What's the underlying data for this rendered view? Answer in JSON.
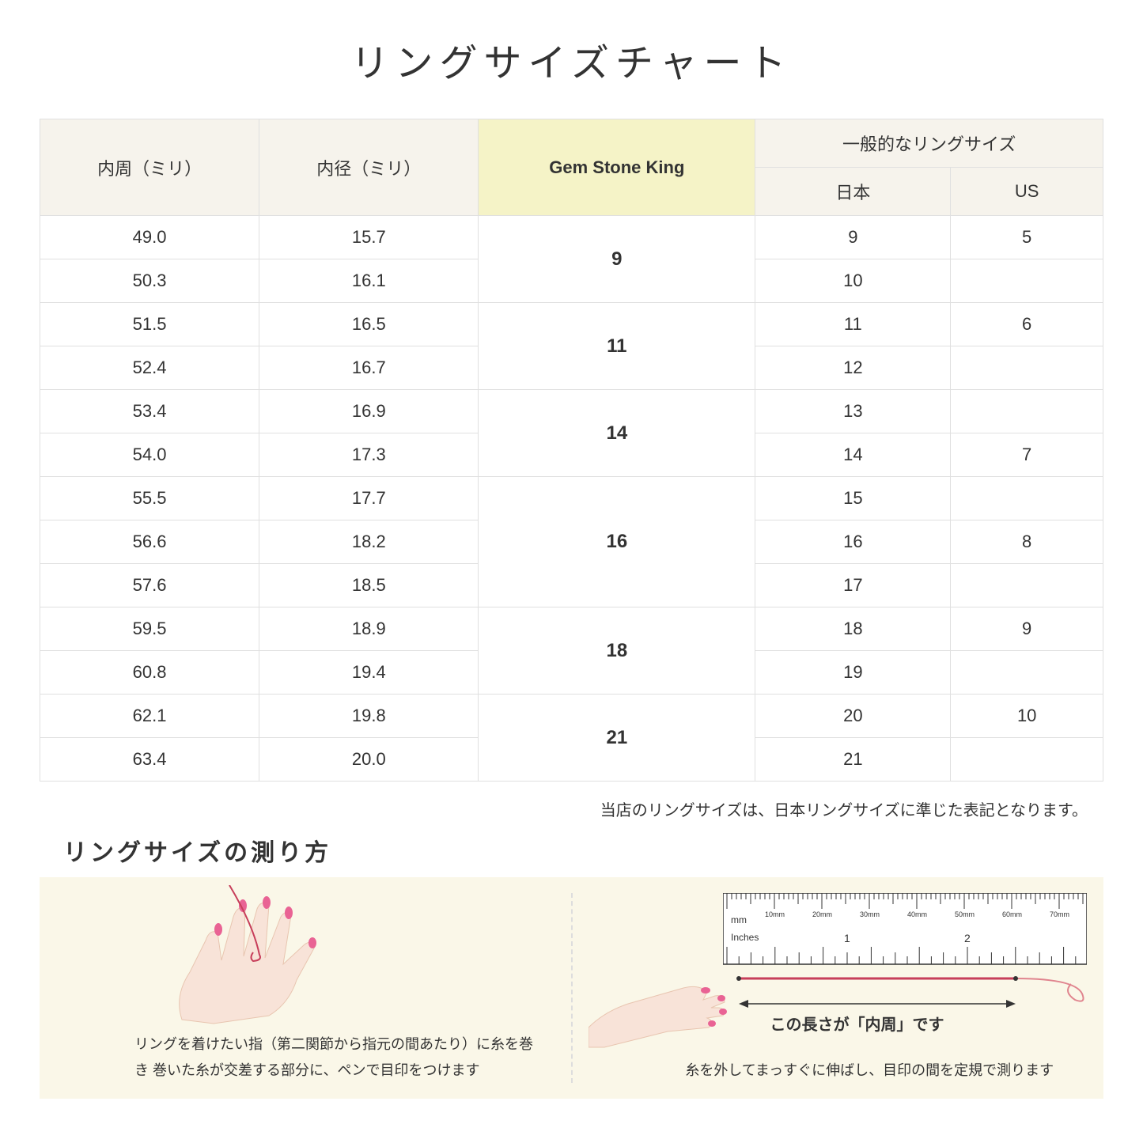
{
  "title": "リングサイズチャート",
  "headers": {
    "circumference": "内周（ミリ）",
    "diameter": "内径（ミリ）",
    "gsk": "Gem Stone King",
    "general": "一般的なリングサイズ",
    "japan": "日本",
    "us": "US"
  },
  "groups": [
    {
      "gsk": "9",
      "rows": [
        {
          "c": "49.0",
          "d": "15.7",
          "jp": "9",
          "us": "5"
        },
        {
          "c": "50.3",
          "d": "16.1",
          "jp": "10",
          "us": ""
        }
      ]
    },
    {
      "gsk": "11",
      "rows": [
        {
          "c": "51.5",
          "d": "16.5",
          "jp": "11",
          "us": "6"
        },
        {
          "c": "52.4",
          "d": "16.7",
          "jp": "12",
          "us": ""
        }
      ]
    },
    {
      "gsk": "14",
      "rows": [
        {
          "c": "53.4",
          "d": "16.9",
          "jp": "13",
          "us": ""
        },
        {
          "c": "54.0",
          "d": "17.3",
          "jp": "14",
          "us": "7"
        }
      ]
    },
    {
      "gsk": "16",
      "rows": [
        {
          "c": "55.5",
          "d": "17.7",
          "jp": "15",
          "us": ""
        },
        {
          "c": "56.6",
          "d": "18.2",
          "jp": "16",
          "us": "8"
        },
        {
          "c": "57.6",
          "d": "18.5",
          "jp": "17",
          "us": ""
        }
      ]
    },
    {
      "gsk": "18",
      "rows": [
        {
          "c": "59.5",
          "d": "18.9",
          "jp": "18",
          "us": "9"
        },
        {
          "c": "60.8",
          "d": "19.4",
          "jp": "19",
          "us": ""
        }
      ]
    },
    {
      "gsk": "21",
      "rows": [
        {
          "c": "62.1",
          "d": "19.8",
          "jp": "20",
          "us": "10"
        },
        {
          "c": "63.4",
          "d": "20.0",
          "jp": "21",
          "us": ""
        }
      ]
    }
  ],
  "note": "当店のリングサイズは、日本リングサイズに準じた表記となります。",
  "howto_title": "リングサイズの測り方",
  "howto_left": "リングを着けたい指（第二関節から指元の間あたり）に糸を巻き\n巻いた糸が交差する部分に、ペンで目印をつけます",
  "howto_right": "糸を外してまっすぐに伸ばし、目印の間を定規で測ります",
  "measure_label": "この長さが「内周」です",
  "ruler": {
    "mm_label": "mm",
    "inches_label": "Inches",
    "mm_marks": [
      "10mm",
      "20mm",
      "30mm",
      "40mm",
      "50mm",
      "60mm",
      "70mm"
    ],
    "inch_marks": [
      "1",
      "2"
    ]
  },
  "colors": {
    "header_bg": "#f6f3ec",
    "highlight_bg": "#f5f3c7",
    "border": "#e0e0e0",
    "howto_bg": "#faf7e8",
    "thread": "#e0848e",
    "thread_dark": "#c73e5a",
    "skin": "#f8e3d8",
    "nail": "#e96394"
  }
}
